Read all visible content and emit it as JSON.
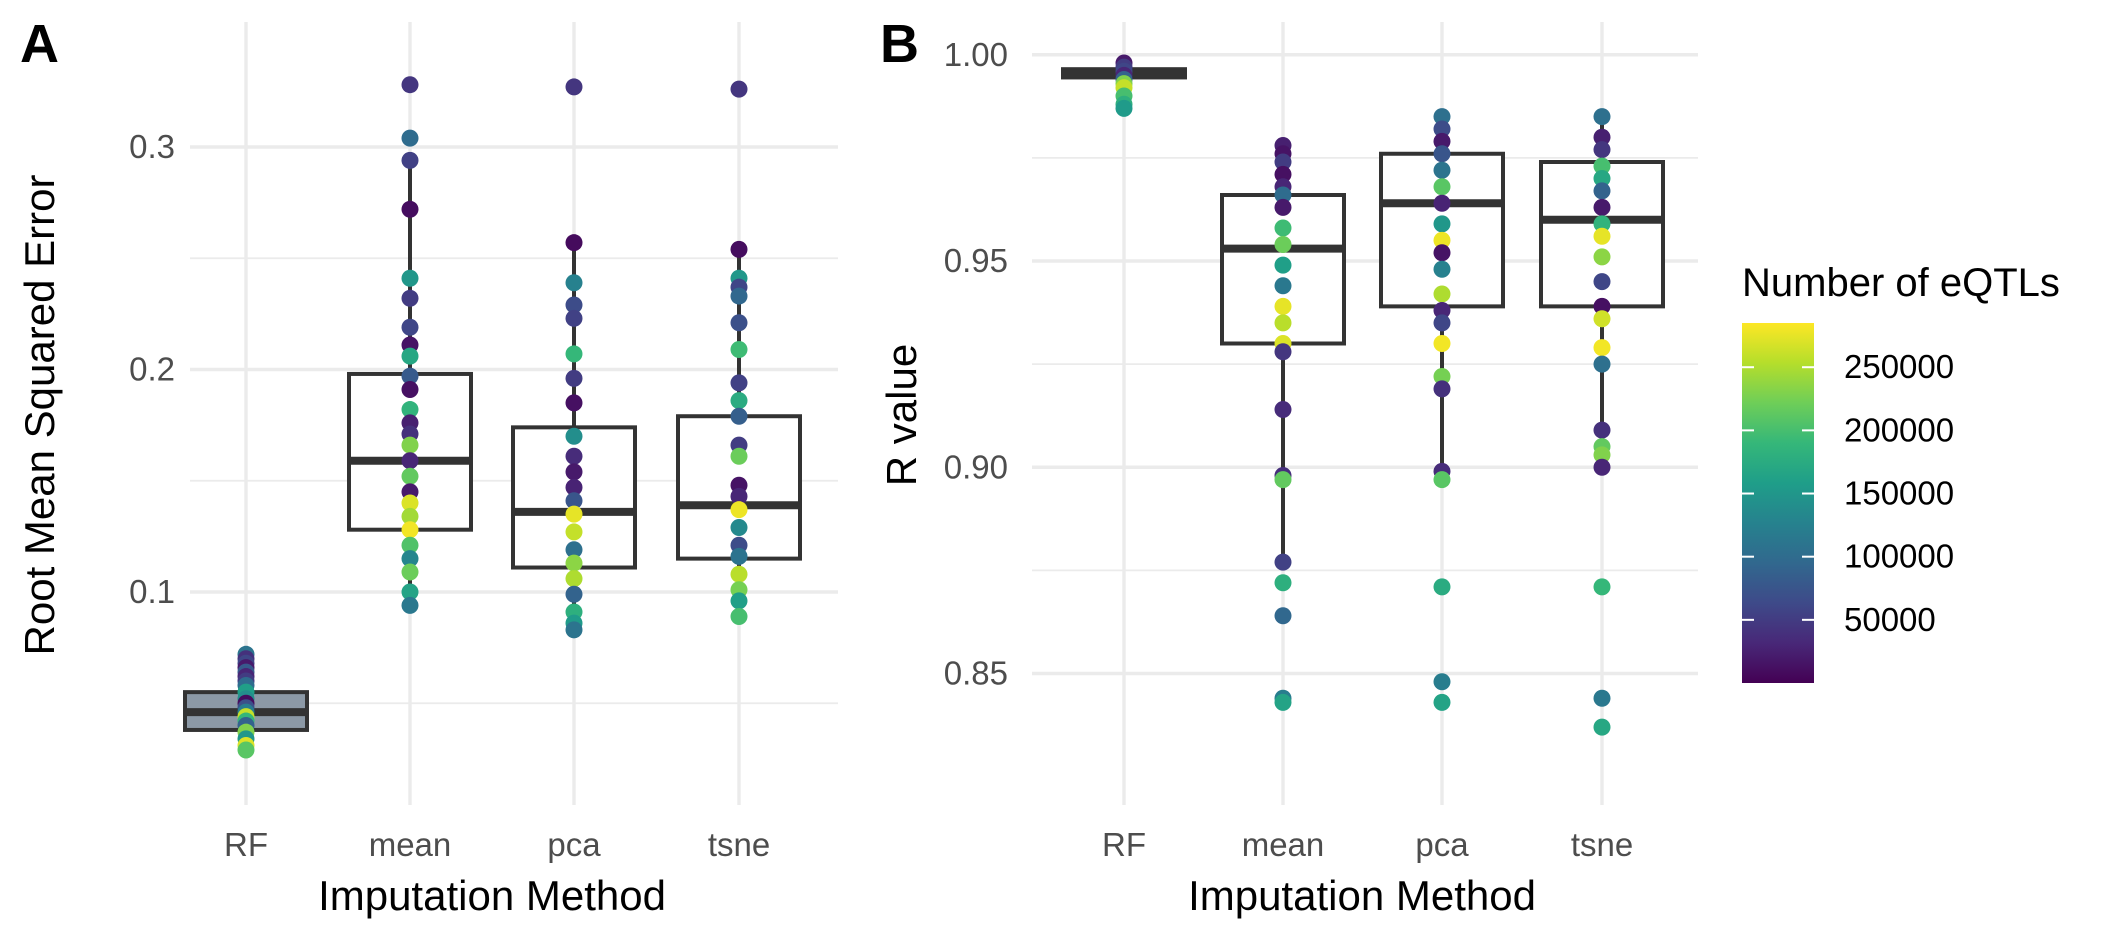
{
  "chart_data": [
    {
      "panel": "A",
      "type": "box",
      "xlabel": "Imputation Method",
      "ylabel": "Root Mean Squared Error",
      "categories": [
        "RF",
        "mean",
        "pca",
        "tsne"
      ],
      "ylim": [
        0.02,
        0.34
      ],
      "yticks": [
        0.1,
        0.2,
        0.3
      ],
      "ytick_labels": [
        "0.1",
        "0.2",
        "0.3"
      ],
      "grid": true,
      "boxes": [
        {
          "q1": 0.038,
          "median": 0.046,
          "q3": 0.055,
          "whisker_low": 0.029,
          "whisker_high": 0.072,
          "fill": "#8c99a6"
        },
        {
          "q1": 0.128,
          "median": 0.159,
          "q3": 0.198,
          "whisker_low": 0.094,
          "whisker_high": 0.294,
          "fill": "#ffffff"
        },
        {
          "q1": 0.111,
          "median": 0.136,
          "q3": 0.174,
          "whisker_low": 0.083,
          "whisker_high": 0.256,
          "fill": "#ffffff"
        },
        {
          "q1": 0.115,
          "median": 0.139,
          "q3": 0.179,
          "whisker_low": 0.088,
          "whisker_high": 0.254,
          "fill": "#ffffff"
        }
      ],
      "points": [
        {
          "x": "RF",
          "y": 0.072,
          "n": 110000
        },
        {
          "x": "RF",
          "y": 0.07,
          "n": 40000
        },
        {
          "x": "RF",
          "y": 0.068,
          "n": 60000
        },
        {
          "x": "RF",
          "y": 0.066,
          "n": 20000
        },
        {
          "x": "RF",
          "y": 0.064,
          "n": 80000
        },
        {
          "x": "RF",
          "y": 0.062,
          "n": 30000
        },
        {
          "x": "RF",
          "y": 0.06,
          "n": 50000
        },
        {
          "x": "RF",
          "y": 0.058,
          "n": 100000
        },
        {
          "x": "RF",
          "y": 0.055,
          "n": 160000
        },
        {
          "x": "RF",
          "y": 0.052,
          "n": 140000
        },
        {
          "x": "RF",
          "y": 0.05,
          "n": 10000
        },
        {
          "x": "RF",
          "y": 0.048,
          "n": 70000
        },
        {
          "x": "RF",
          "y": 0.046,
          "n": 120000
        },
        {
          "x": "RF",
          "y": 0.044,
          "n": 260000
        },
        {
          "x": "RF",
          "y": 0.042,
          "n": 190000
        },
        {
          "x": "RF",
          "y": 0.04,
          "n": 90000
        },
        {
          "x": "RF",
          "y": 0.037,
          "n": 230000
        },
        {
          "x": "RF",
          "y": 0.034,
          "n": 150000
        },
        {
          "x": "RF",
          "y": 0.031,
          "n": 270000
        },
        {
          "x": "RF",
          "y": 0.029,
          "n": 210000
        },
        {
          "x": "mean",
          "y": 0.328,
          "n": 45000
        },
        {
          "x": "mean",
          "y": 0.304,
          "n": 100000
        },
        {
          "x": "mean",
          "y": 0.294,
          "n": 55000
        },
        {
          "x": "mean",
          "y": 0.272,
          "n": 10000
        },
        {
          "x": "mean",
          "y": 0.241,
          "n": 150000
        },
        {
          "x": "mean",
          "y": 0.232,
          "n": 50000
        },
        {
          "x": "mean",
          "y": 0.219,
          "n": 60000
        },
        {
          "x": "mean",
          "y": 0.211,
          "n": 15000
        },
        {
          "x": "mean",
          "y": 0.206,
          "n": 170000
        },
        {
          "x": "mean",
          "y": 0.197,
          "n": 80000
        },
        {
          "x": "mean",
          "y": 0.191,
          "n": 12000
        },
        {
          "x": "mean",
          "y": 0.182,
          "n": 185000
        },
        {
          "x": "mean",
          "y": 0.176,
          "n": 25000
        },
        {
          "x": "mean",
          "y": 0.171,
          "n": 40000
        },
        {
          "x": "mean",
          "y": 0.166,
          "n": 230000
        },
        {
          "x": "mean",
          "y": 0.159,
          "n": 30000
        },
        {
          "x": "mean",
          "y": 0.152,
          "n": 215000
        },
        {
          "x": "mean",
          "y": 0.145,
          "n": 20000
        },
        {
          "x": "mean",
          "y": 0.14,
          "n": 270000
        },
        {
          "x": "mean",
          "y": 0.134,
          "n": 245000
        },
        {
          "x": "mean",
          "y": 0.128,
          "n": 280000
        },
        {
          "x": "mean",
          "y": 0.121,
          "n": 205000
        },
        {
          "x": "mean",
          "y": 0.115,
          "n": 130000
        },
        {
          "x": "mean",
          "y": 0.109,
          "n": 220000
        },
        {
          "x": "mean",
          "y": 0.1,
          "n": 165000
        },
        {
          "x": "mean",
          "y": 0.094,
          "n": 115000
        },
        {
          "x": "pca",
          "y": 0.327,
          "n": 45000
        },
        {
          "x": "pca",
          "y": 0.257,
          "n": 8000
        },
        {
          "x": "pca",
          "y": 0.239,
          "n": 125000
        },
        {
          "x": "pca",
          "y": 0.229,
          "n": 65000
        },
        {
          "x": "pca",
          "y": 0.223,
          "n": 55000
        },
        {
          "x": "pca",
          "y": 0.207,
          "n": 190000
        },
        {
          "x": "pca",
          "y": 0.196,
          "n": 50000
        },
        {
          "x": "pca",
          "y": 0.185,
          "n": 12000
        },
        {
          "x": "pca",
          "y": 0.17,
          "n": 140000
        },
        {
          "x": "pca",
          "y": 0.161,
          "n": 35000
        },
        {
          "x": "pca",
          "y": 0.154,
          "n": 20000
        },
        {
          "x": "pca",
          "y": 0.147,
          "n": 28000
        },
        {
          "x": "pca",
          "y": 0.141,
          "n": 75000
        },
        {
          "x": "pca",
          "y": 0.135,
          "n": 275000
        },
        {
          "x": "pca",
          "y": 0.127,
          "n": 260000
        },
        {
          "x": "pca",
          "y": 0.119,
          "n": 105000
        },
        {
          "x": "pca",
          "y": 0.113,
          "n": 235000
        },
        {
          "x": "pca",
          "y": 0.106,
          "n": 250000
        },
        {
          "x": "pca",
          "y": 0.099,
          "n": 90000
        },
        {
          "x": "pca",
          "y": 0.091,
          "n": 180000
        },
        {
          "x": "pca",
          "y": 0.086,
          "n": 155000
        },
        {
          "x": "pca",
          "y": 0.083,
          "n": 110000
        },
        {
          "x": "tsne",
          "y": 0.326,
          "n": 45000
        },
        {
          "x": "tsne",
          "y": 0.254,
          "n": 10000
        },
        {
          "x": "tsne",
          "y": 0.241,
          "n": 150000
        },
        {
          "x": "tsne",
          "y": 0.237,
          "n": 60000
        },
        {
          "x": "tsne",
          "y": 0.233,
          "n": 95000
        },
        {
          "x": "tsne",
          "y": 0.221,
          "n": 70000
        },
        {
          "x": "tsne",
          "y": 0.209,
          "n": 195000
        },
        {
          "x": "tsne",
          "y": 0.194,
          "n": 55000
        },
        {
          "x": "tsne",
          "y": 0.186,
          "n": 175000
        },
        {
          "x": "tsne",
          "y": 0.179,
          "n": 85000
        },
        {
          "x": "tsne",
          "y": 0.166,
          "n": 50000
        },
        {
          "x": "tsne",
          "y": 0.161,
          "n": 220000
        },
        {
          "x": "tsne",
          "y": 0.148,
          "n": 15000
        },
        {
          "x": "tsne",
          "y": 0.143,
          "n": 30000
        },
        {
          "x": "tsne",
          "y": 0.137,
          "n": 278000
        },
        {
          "x": "tsne",
          "y": 0.129,
          "n": 135000
        },
        {
          "x": "tsne",
          "y": 0.121,
          "n": 65000
        },
        {
          "x": "tsne",
          "y": 0.116,
          "n": 108000
        },
        {
          "x": "tsne",
          "y": 0.108,
          "n": 255000
        },
        {
          "x": "tsne",
          "y": 0.101,
          "n": 225000
        },
        {
          "x": "tsne",
          "y": 0.096,
          "n": 160000
        },
        {
          "x": "tsne",
          "y": 0.089,
          "n": 200000
        }
      ]
    },
    {
      "panel": "B",
      "type": "box",
      "xlabel": "Imputation Method",
      "ylabel": "R value",
      "categories": [
        "RF",
        "mean",
        "pca",
        "tsne"
      ],
      "ylim": [
        0.83,
        1.006
      ],
      "yticks": [
        0.85,
        0.9,
        0.95,
        1.0
      ],
      "ytick_labels": [
        "0.85",
        "0.90",
        "0.95",
        "1.00"
      ],
      "grid": true,
      "boxes": [
        {
          "q1": 0.9945,
          "median": 0.9955,
          "q3": 0.9965,
          "whisker_low": 0.9945,
          "whisker_high": 0.9965,
          "fill": "#ffffff"
        },
        {
          "q1": 0.93,
          "median": 0.953,
          "q3": 0.966,
          "whisker_low": 0.877,
          "whisker_high": 0.978,
          "fill": "#ffffff"
        },
        {
          "q1": 0.939,
          "median": 0.964,
          "q3": 0.976,
          "whisker_low": 0.899,
          "whisker_high": 0.985,
          "fill": "#ffffff"
        },
        {
          "q1": 0.939,
          "median": 0.96,
          "q3": 0.974,
          "whisker_low": 0.9,
          "whisker_high": 0.985,
          "fill": "#ffffff"
        }
      ],
      "points": [
        {
          "x": "RF",
          "y": 0.998,
          "n": 20000
        },
        {
          "x": "RF",
          "y": 0.997,
          "n": 50000
        },
        {
          "x": "RF",
          "y": 0.996,
          "n": 60000
        },
        {
          "x": "RF",
          "y": 0.995,
          "n": 30000
        },
        {
          "x": "RF",
          "y": 0.994,
          "n": 90000
        },
        {
          "x": "RF",
          "y": 0.993,
          "n": 230000
        },
        {
          "x": "RF",
          "y": 0.992,
          "n": 260000
        },
        {
          "x": "RF",
          "y": 0.99,
          "n": 200000
        },
        {
          "x": "RF",
          "y": 0.988,
          "n": 180000
        },
        {
          "x": "RF",
          "y": 0.987,
          "n": 155000
        },
        {
          "x": "mean",
          "y": 0.978,
          "n": 25000
        },
        {
          "x": "mean",
          "y": 0.976,
          "n": 15000
        },
        {
          "x": "mean",
          "y": 0.974,
          "n": 50000
        },
        {
          "x": "mean",
          "y": 0.971,
          "n": 12000
        },
        {
          "x": "mean",
          "y": 0.968,
          "n": 30000
        },
        {
          "x": "mean",
          "y": 0.966,
          "n": 100000
        },
        {
          "x": "mean",
          "y": 0.963,
          "n": 20000
        },
        {
          "x": "mean",
          "y": 0.958,
          "n": 195000
        },
        {
          "x": "mean",
          "y": 0.954,
          "n": 220000
        },
        {
          "x": "mean",
          "y": 0.949,
          "n": 160000
        },
        {
          "x": "mean",
          "y": 0.944,
          "n": 115000
        },
        {
          "x": "mean",
          "y": 0.939,
          "n": 275000
        },
        {
          "x": "mean",
          "y": 0.935,
          "n": 255000
        },
        {
          "x": "mean",
          "y": 0.93,
          "n": 270000
        },
        {
          "x": "mean",
          "y": 0.928,
          "n": 45000
        },
        {
          "x": "mean",
          "y": 0.914,
          "n": 35000
        },
        {
          "x": "mean",
          "y": 0.898,
          "n": 38000
        },
        {
          "x": "mean",
          "y": 0.897,
          "n": 215000
        },
        {
          "x": "mean",
          "y": 0.877,
          "n": 55000
        },
        {
          "x": "mean",
          "y": 0.872,
          "n": 180000
        },
        {
          "x": "mean",
          "y": 0.864,
          "n": 95000
        },
        {
          "x": "mean",
          "y": 0.844,
          "n": 120000
        },
        {
          "x": "mean",
          "y": 0.843,
          "n": 165000
        },
        {
          "x": "pca",
          "y": 0.985,
          "n": 105000
        },
        {
          "x": "pca",
          "y": 0.982,
          "n": 65000
        },
        {
          "x": "pca",
          "y": 0.979,
          "n": 20000
        },
        {
          "x": "pca",
          "y": 0.976,
          "n": 75000
        },
        {
          "x": "pca",
          "y": 0.972,
          "n": 110000
        },
        {
          "x": "pca",
          "y": 0.968,
          "n": 210000
        },
        {
          "x": "pca",
          "y": 0.964,
          "n": 28000
        },
        {
          "x": "pca",
          "y": 0.959,
          "n": 150000
        },
        {
          "x": "pca",
          "y": 0.955,
          "n": 278000
        },
        {
          "x": "pca",
          "y": 0.952,
          "n": 15000
        },
        {
          "x": "pca",
          "y": 0.948,
          "n": 125000
        },
        {
          "x": "pca",
          "y": 0.942,
          "n": 250000
        },
        {
          "x": "pca",
          "y": 0.938,
          "n": 30000
        },
        {
          "x": "pca",
          "y": 0.935,
          "n": 60000
        },
        {
          "x": "pca",
          "y": 0.93,
          "n": 280000
        },
        {
          "x": "pca",
          "y": 0.922,
          "n": 225000
        },
        {
          "x": "pca",
          "y": 0.919,
          "n": 40000
        },
        {
          "x": "pca",
          "y": 0.899,
          "n": 35000
        },
        {
          "x": "pca",
          "y": 0.897,
          "n": 210000
        },
        {
          "x": "pca",
          "y": 0.871,
          "n": 175000
        },
        {
          "x": "pca",
          "y": 0.848,
          "n": 120000
        },
        {
          "x": "pca",
          "y": 0.843,
          "n": 165000
        },
        {
          "x": "tsne",
          "y": 0.985,
          "n": 105000
        },
        {
          "x": "tsne",
          "y": 0.98,
          "n": 25000
        },
        {
          "x": "tsne",
          "y": 0.977,
          "n": 45000
        },
        {
          "x": "tsne",
          "y": 0.973,
          "n": 200000
        },
        {
          "x": "tsne",
          "y": 0.97,
          "n": 170000
        },
        {
          "x": "tsne",
          "y": 0.967,
          "n": 90000
        },
        {
          "x": "tsne",
          "y": 0.963,
          "n": 20000
        },
        {
          "x": "tsne",
          "y": 0.959,
          "n": 185000
        },
        {
          "x": "tsne",
          "y": 0.956,
          "n": 275000
        },
        {
          "x": "tsne",
          "y": 0.951,
          "n": 235000
        },
        {
          "x": "tsne",
          "y": 0.945,
          "n": 60000
        },
        {
          "x": "tsne",
          "y": 0.939,
          "n": 12000
        },
        {
          "x": "tsne",
          "y": 0.936,
          "n": 265000
        },
        {
          "x": "tsne",
          "y": 0.929,
          "n": 280000
        },
        {
          "x": "tsne",
          "y": 0.925,
          "n": 105000
        },
        {
          "x": "tsne",
          "y": 0.909,
          "n": 40000
        },
        {
          "x": "tsne",
          "y": 0.905,
          "n": 215000
        },
        {
          "x": "tsne",
          "y": 0.903,
          "n": 230000
        },
        {
          "x": "tsne",
          "y": 0.9,
          "n": 30000
        },
        {
          "x": "tsne",
          "y": 0.871,
          "n": 190000
        },
        {
          "x": "tsne",
          "y": 0.844,
          "n": 115000
        },
        {
          "x": "tsne",
          "y": 0.837,
          "n": 170000
        }
      ]
    }
  ],
  "legend": {
    "title": "Number of eQTLs",
    "min": 0,
    "max": 285000,
    "ticks": [
      50000,
      100000,
      150000,
      200000,
      250000
    ],
    "tick_labels": [
      "50000",
      "100000",
      "150000",
      "200000",
      "250000"
    ],
    "colors": [
      "#440154",
      "#482878",
      "#3e4a89",
      "#31688e",
      "#26828e",
      "#1f9e89",
      "#35b779",
      "#6ece58",
      "#b5de2b",
      "#fde725"
    ]
  }
}
